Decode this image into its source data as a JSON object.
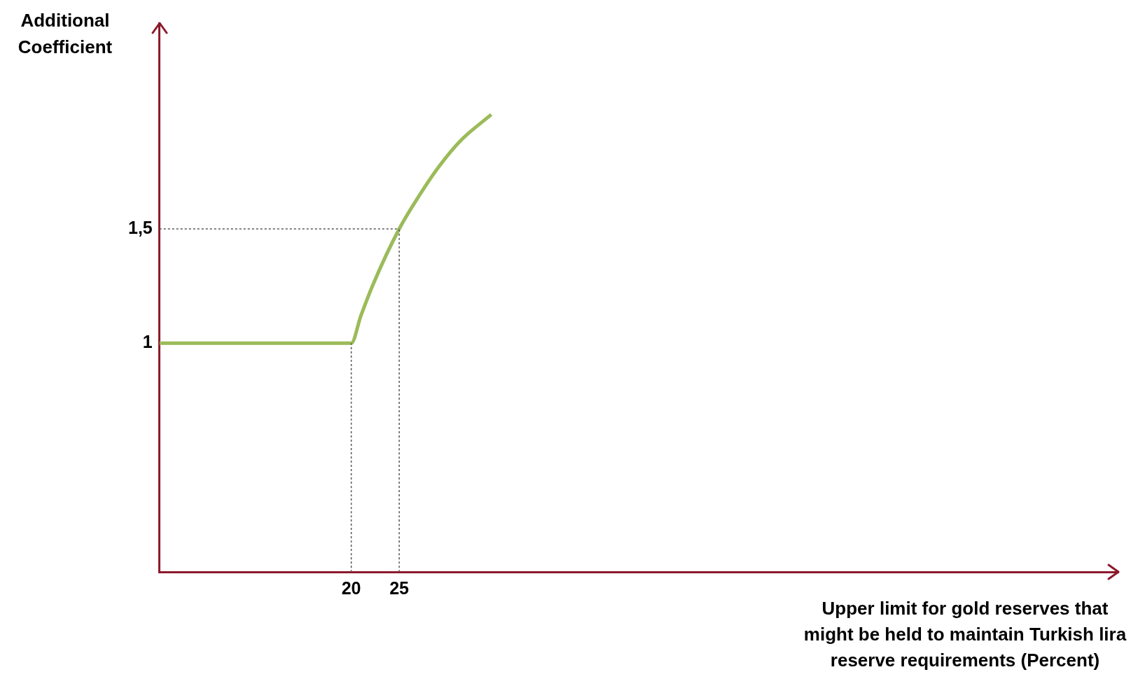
{
  "chart_data": {
    "type": "line",
    "xlabel": "Upper limit for gold reserves that might be held to maintain Turkish lira reserve requirements (Percent)",
    "ylabel": "Additional Coefficient",
    "xlim": [
      0,
      100
    ],
    "ylim": [
      0,
      2.4
    ],
    "xticks": [
      20,
      25
    ],
    "yticks": [
      1,
      {
        "value": 1.5,
        "label": "1,5"
      }
    ],
    "grid": false,
    "legend": false,
    "marker": "none",
    "series": [
      {
        "color": "#9bbb59",
        "x": [
          0,
          20,
          21,
          22.3,
          25,
          27,
          29.1,
          31.5,
          34.6
        ],
        "values": [
          1,
          1,
          1.12,
          1.26,
          1.5,
          1.64,
          1.77,
          1.89,
          2.0
        ],
        "line_style": "solid"
      },
      {
        "color": "#555555",
        "x": [
          20,
          20
        ],
        "values": [
          0,
          1
        ],
        "line_style": "dashed"
      },
      {
        "color": "#555555",
        "x": [
          25,
          25
        ],
        "values": [
          0,
          1.5
        ],
        "line_style": "dashed"
      },
      {
        "color": "#555555",
        "x": [
          0,
          25
        ],
        "values": [
          1.5,
          1.5
        ],
        "line_style": "dashed"
      }
    ]
  }
}
